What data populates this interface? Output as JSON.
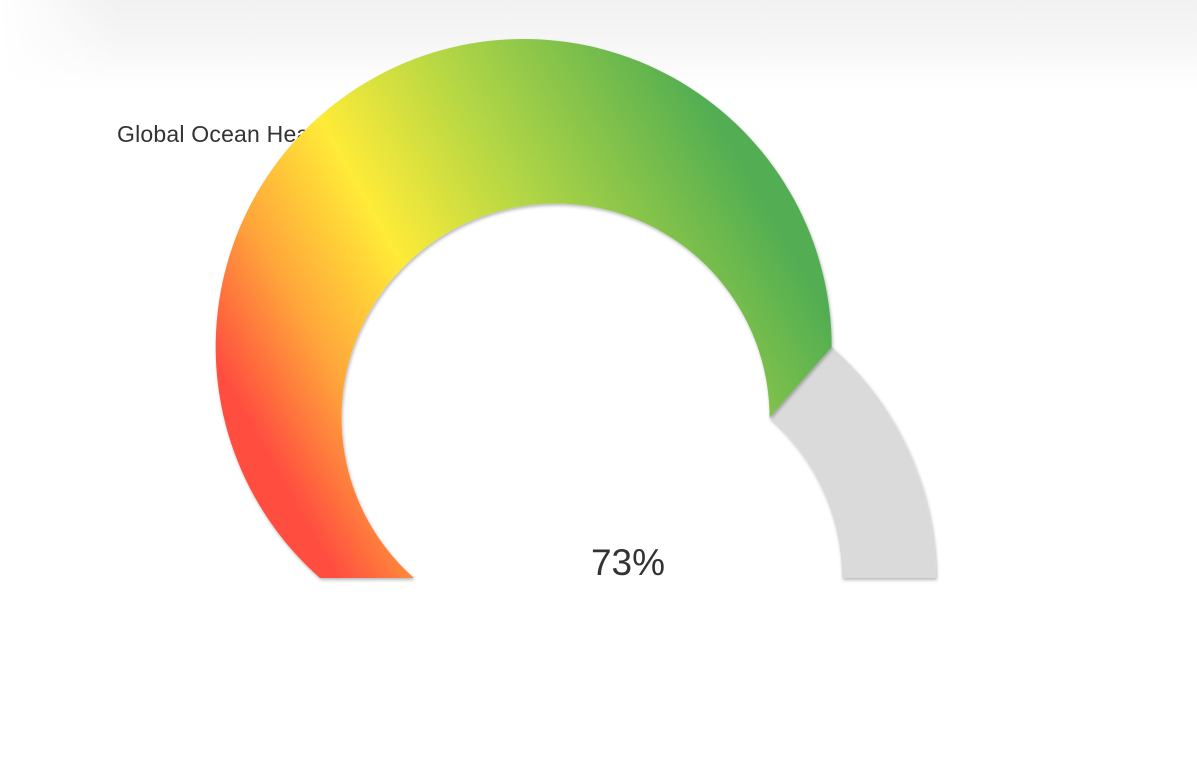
{
  "chart_data": {
    "type": "gauge",
    "title": "Global Ocean Health Index",
    "value": 73,
    "value_label": "73%",
    "min": 0,
    "max": 100,
    "colors": {
      "low": "#ff4d40",
      "mid_low": "#ffa63a",
      "mid": "#ffeb38",
      "mid_high": "#b5d744",
      "high": "#52ae52",
      "track": "#dadada",
      "text": "#333333"
    }
  }
}
